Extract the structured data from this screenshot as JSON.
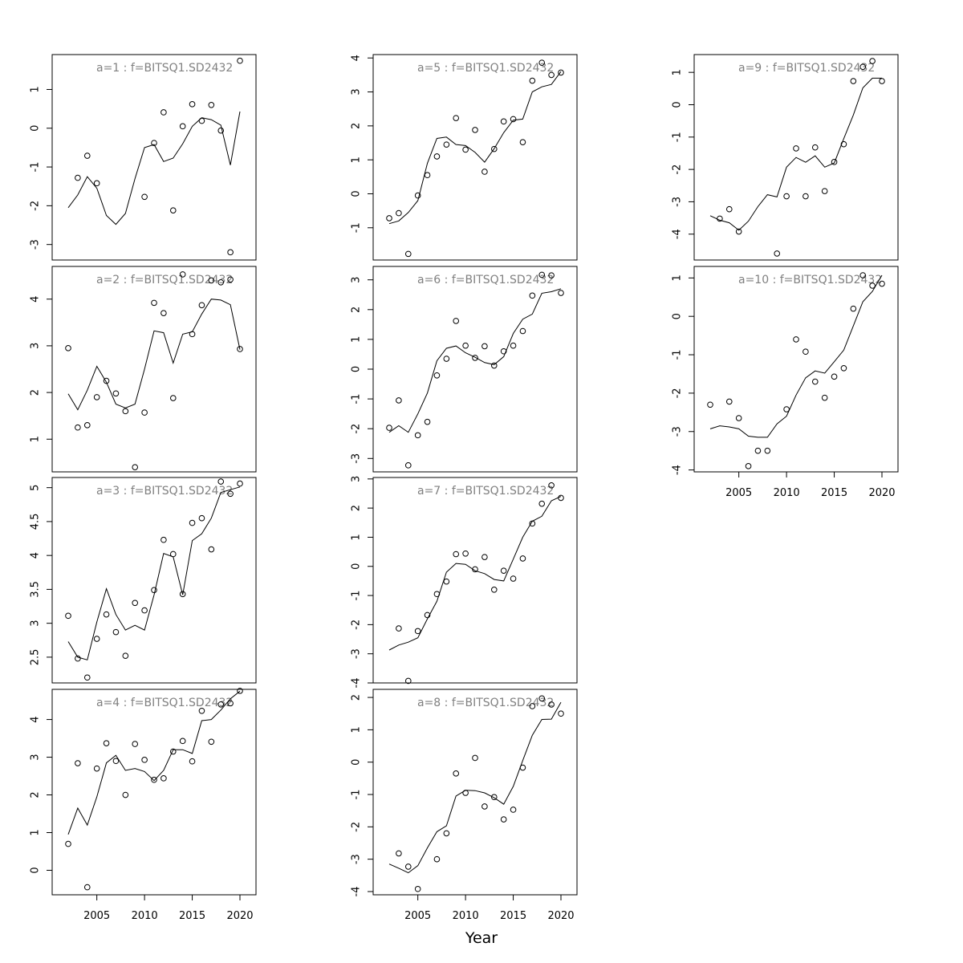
{
  "xlabel": "Year",
  "chart_data": [
    {
      "type": "scatter",
      "panel": "1",
      "title": "a=1 : f=BITSQ1.SD2432",
      "xlim": [
        2002,
        2020
      ],
      "ylim": [
        -3.4,
        1.9
      ],
      "yticks": [
        1,
        0,
        -1,
        -2,
        -3
      ],
      "xticks": [
        2005,
        2010,
        2015,
        2020
      ],
      "show_xticks": false,
      "observed": {
        "x": [
          2003,
          2004,
          2005,
          2010,
          2011,
          2012,
          2013,
          2014,
          2015,
          2016,
          2017,
          2018,
          2019,
          2020
        ],
        "y": [
          -1.28,
          -0.71,
          -1.42,
          -1.77,
          -0.38,
          0.41,
          -2.12,
          0.05,
          0.62,
          0.19,
          0.6,
          -0.06,
          -3.2,
          1.74
        ]
      },
      "fitted": {
        "x": [
          2002,
          2003,
          2004,
          2005,
          2006,
          2007,
          2008,
          2009,
          2010,
          2011,
          2012,
          2013,
          2014,
          2015,
          2016,
          2017,
          2018,
          2019,
          2020
        ],
        "y": [
          -2.05,
          -1.72,
          -1.25,
          -1.55,
          -2.25,
          -2.48,
          -2.2,
          -1.3,
          -0.5,
          -0.42,
          -0.86,
          -0.77,
          -0.4,
          0.05,
          0.27,
          0.22,
          0.08,
          -0.95,
          0.43
        ]
      }
    },
    {
      "type": "scatter",
      "panel": "2",
      "title": "a=2 : f=BITSQ1.SD2432",
      "xlim": [
        2002,
        2020
      ],
      "ylim": [
        0.3,
        4.7
      ],
      "yticks": [
        4,
        3,
        2,
        1
      ],
      "xticks": [
        2005,
        2010,
        2015,
        2020
      ],
      "show_xticks": false,
      "observed": {
        "x": [
          2002,
          2003,
          2004,
          2005,
          2006,
          2007,
          2008,
          2009,
          2010,
          2011,
          2012,
          2013,
          2014,
          2015,
          2016,
          2017,
          2018,
          2019,
          2020
        ],
        "y": [
          2.95,
          1.25,
          1.3,
          1.9,
          2.25,
          1.98,
          1.6,
          0.4,
          1.57,
          3.92,
          3.7,
          1.88,
          4.53,
          3.25,
          3.87,
          4.4,
          4.36,
          4.42,
          2.93
        ]
      },
      "fitted": {
        "x": [
          2002,
          2003,
          2004,
          2005,
          2006,
          2007,
          2008,
          2009,
          2010,
          2011,
          2012,
          2013,
          2014,
          2015,
          2016,
          2017,
          2018,
          2019,
          2020
        ],
        "y": [
          1.97,
          1.63,
          2.05,
          2.56,
          2.22,
          1.75,
          1.67,
          1.75,
          2.5,
          3.32,
          3.28,
          2.63,
          3.25,
          3.3,
          3.68,
          4.0,
          3.98,
          3.88,
          2.92
        ]
      }
    },
    {
      "type": "scatter",
      "panel": "3",
      "title": "a=3 : f=BITSQ1.SD2432",
      "xlim": [
        2002,
        2020
      ],
      "ylim": [
        2.12,
        5.15
      ],
      "yticks": [
        5.0,
        4.5,
        4.0,
        3.5,
        3.0,
        2.5
      ],
      "xticks": [
        2005,
        2010,
        2015,
        2020
      ],
      "show_xticks": false,
      "observed": {
        "x": [
          2002,
          2003,
          2004,
          2005,
          2006,
          2007,
          2008,
          2009,
          2010,
          2011,
          2012,
          2013,
          2014,
          2015,
          2016,
          2017,
          2018,
          2019,
          2020
        ],
        "y": [
          3.11,
          2.48,
          2.2,
          2.77,
          3.13,
          2.87,
          2.52,
          3.3,
          3.19,
          3.49,
          4.23,
          4.02,
          3.43,
          4.48,
          4.55,
          4.09,
          5.09,
          4.91,
          5.06
        ]
      },
      "fitted": {
        "x": [
          2002,
          2003,
          2004,
          2005,
          2006,
          2007,
          2008,
          2009,
          2010,
          2011,
          2012,
          2013,
          2014,
          2015,
          2016,
          2017,
          2018,
          2019,
          2020
        ],
        "y": [
          2.73,
          2.5,
          2.46,
          3.02,
          3.51,
          3.13,
          2.9,
          2.97,
          2.9,
          3.42,
          4.03,
          3.98,
          3.42,
          4.22,
          4.32,
          4.55,
          4.93,
          4.97,
          5.01
        ]
      }
    },
    {
      "type": "scatter",
      "panel": "4",
      "title": "a=4 : f=BITSQ1.SD2432",
      "xlim": [
        2002,
        2020
      ],
      "ylim": [
        -0.65,
        4.8
      ],
      "yticks": [
        4,
        3,
        2,
        1,
        0
      ],
      "xticks": [
        2005,
        2010,
        2015,
        2020
      ],
      "show_xticks": true,
      "observed": {
        "x": [
          2002,
          2003,
          2004,
          2005,
          2006,
          2007,
          2008,
          2009,
          2010,
          2011,
          2012,
          2013,
          2014,
          2015,
          2016,
          2017,
          2018,
          2019,
          2020
        ],
        "y": [
          0.7,
          2.84,
          -0.45,
          2.7,
          3.37,
          2.9,
          2.0,
          3.35,
          2.93,
          2.4,
          2.44,
          3.15,
          3.43,
          2.89,
          4.23,
          3.41,
          4.4,
          4.43,
          4.76
        ]
      },
      "fitted": {
        "x": [
          2002,
          2003,
          2004,
          2005,
          2006,
          2007,
          2008,
          2009,
          2010,
          2011,
          2012,
          2013,
          2014,
          2015,
          2016,
          2017,
          2018,
          2019,
          2020
        ],
        "y": [
          0.95,
          1.65,
          1.2,
          1.95,
          2.85,
          3.05,
          2.65,
          2.7,
          2.62,
          2.38,
          2.65,
          3.2,
          3.2,
          3.1,
          3.97,
          4.0,
          4.25,
          4.55,
          4.75
        ]
      }
    },
    {
      "type": "scatter",
      "panel": "5",
      "title": "a=5 : f=BITSQ1.SD2432",
      "xlim": [
        2002,
        2020
      ],
      "ylim": [
        -1.95,
        4.1
      ],
      "yticks": [
        4,
        3,
        2,
        1,
        0,
        -1
      ],
      "xticks": [
        2005,
        2010,
        2015,
        2020
      ],
      "show_xticks": false,
      "observed": {
        "x": [
          2002,
          2003,
          2004,
          2005,
          2006,
          2007,
          2008,
          2009,
          2010,
          2011,
          2012,
          2013,
          2014,
          2015,
          2016,
          2017,
          2018,
          2019,
          2020
        ],
        "y": [
          -0.72,
          -0.57,
          -1.77,
          -0.05,
          0.55,
          1.1,
          1.45,
          2.23,
          1.3,
          1.88,
          0.65,
          1.32,
          2.13,
          2.2,
          1.52,
          3.33,
          3.86,
          3.5,
          3.57
        ]
      },
      "fitted": {
        "x": [
          2002,
          2003,
          2004,
          2005,
          2006,
          2007,
          2008,
          2009,
          2010,
          2011,
          2012,
          2013,
          2014,
          2015,
          2016,
          2017,
          2018,
          2019,
          2020
        ],
        "y": [
          -0.88,
          -0.8,
          -0.55,
          -0.2,
          0.9,
          1.63,
          1.67,
          1.45,
          1.42,
          1.22,
          0.93,
          1.33,
          1.8,
          2.17,
          2.2,
          3.0,
          3.15,
          3.22,
          3.6
        ]
      }
    },
    {
      "type": "scatter",
      "panel": "6",
      "title": "a=6 : f=BITSQ1.SD2432",
      "xlim": [
        2002,
        2020
      ],
      "ylim": [
        -3.45,
        3.45
      ],
      "yticks": [
        3,
        2,
        1,
        0,
        -1,
        -2,
        -3
      ],
      "xticks": [
        2005,
        2010,
        2015,
        2020
      ],
      "show_xticks": false,
      "observed": {
        "x": [
          2002,
          2003,
          2004,
          2005,
          2006,
          2007,
          2008,
          2009,
          2010,
          2011,
          2012,
          2013,
          2014,
          2015,
          2016,
          2017,
          2018,
          2019,
          2020
        ],
        "y": [
          -1.97,
          -1.05,
          -3.23,
          -2.22,
          -1.77,
          -0.21,
          0.35,
          1.62,
          0.79,
          0.38,
          0.77,
          0.12,
          0.6,
          0.79,
          1.28,
          2.47,
          3.17,
          3.15,
          2.56
        ]
      },
      "fitted": {
        "x": [
          2002,
          2003,
          2004,
          2005,
          2006,
          2007,
          2008,
          2009,
          2010,
          2011,
          2012,
          2013,
          2014,
          2015,
          2016,
          2017,
          2018,
          2019,
          2020
        ],
        "y": [
          -2.12,
          -1.9,
          -2.12,
          -1.5,
          -0.8,
          0.28,
          0.7,
          0.78,
          0.55,
          0.4,
          0.22,
          0.15,
          0.42,
          1.2,
          1.68,
          1.85,
          2.55,
          2.6,
          2.7
        ]
      }
    },
    {
      "type": "scatter",
      "panel": "7",
      "title": "a=7 : f=BITSQ1.SD2432",
      "xlim": [
        2002,
        2020
      ],
      "ylim": [
        -4.0,
        3.05
      ],
      "yticks": [
        3,
        2,
        1,
        0,
        -1,
        -2,
        -3,
        -4
      ],
      "xticks": [
        2005,
        2010,
        2015,
        2020
      ],
      "show_xticks": false,
      "observed": {
        "x": [
          2003,
          2004,
          2005,
          2006,
          2007,
          2008,
          2009,
          2010,
          2011,
          2012,
          2013,
          2014,
          2015,
          2016,
          2017,
          2018,
          2019,
          2020
        ],
        "y": [
          -2.13,
          -3.93,
          -2.22,
          -1.67,
          -0.95,
          -0.52,
          0.42,
          0.44,
          -0.1,
          0.32,
          -0.8,
          -0.15,
          -0.42,
          0.27,
          1.47,
          2.15,
          2.78,
          2.35
        ]
      },
      "fitted": {
        "x": [
          2002,
          2003,
          2004,
          2005,
          2006,
          2007,
          2008,
          2009,
          2010,
          2011,
          2012,
          2013,
          2014,
          2015,
          2016,
          2017,
          2018,
          2019,
          2020
        ],
        "y": [
          -2.87,
          -2.7,
          -2.6,
          -2.45,
          -1.8,
          -1.2,
          -0.2,
          0.1,
          0.07,
          -0.15,
          -0.25,
          -0.45,
          -0.5,
          0.25,
          1.0,
          1.55,
          1.72,
          2.25,
          2.4
        ]
      }
    },
    {
      "type": "scatter",
      "panel": "8",
      "title": "a=8 : f=BITSQ1.SD2432",
      "xlim": [
        2002,
        2020
      ],
      "ylim": [
        -4.1,
        2.25
      ],
      "yticks": [
        2,
        1,
        0,
        -1,
        -2,
        -3,
        -4
      ],
      "xticks": [
        2005,
        2010,
        2015,
        2020
      ],
      "show_xticks": true,
      "observed": {
        "x": [
          2003,
          2004,
          2005,
          2007,
          2008,
          2009,
          2010,
          2011,
          2012,
          2013,
          2014,
          2015,
          2016,
          2017,
          2018,
          2019,
          2020
        ],
        "y": [
          -2.82,
          -3.23,
          -3.92,
          -3.0,
          -2.2,
          -0.35,
          -0.95,
          0.13,
          -1.37,
          -1.08,
          -1.77,
          -1.47,
          -0.17,
          1.73,
          1.97,
          1.78,
          1.5
        ]
      },
      "fitted": {
        "x": [
          2002,
          2003,
          2004,
          2005,
          2006,
          2007,
          2008,
          2009,
          2010,
          2011,
          2012,
          2013,
          2014,
          2015,
          2016,
          2017,
          2018,
          2019,
          2020
        ],
        "y": [
          -3.15,
          -3.28,
          -3.42,
          -3.2,
          -2.65,
          -2.15,
          -1.97,
          -1.05,
          -0.87,
          -0.88,
          -0.95,
          -1.1,
          -1.3,
          -0.75,
          0.05,
          0.83,
          1.32,
          1.33,
          1.85
        ]
      }
    },
    {
      "type": "scatter",
      "panel": "9",
      "title": "a=9 : f=BITSQ1.SD2432",
      "xlim": [
        2002,
        2020
      ],
      "ylim": [
        -4.8,
        1.55
      ],
      "yticks": [
        1,
        0,
        -1,
        -2,
        -3,
        -4
      ],
      "xticks": [
        2005,
        2010,
        2015,
        2020
      ],
      "show_xticks": false,
      "observed": {
        "x": [
          2003,
          2004,
          2005,
          2009,
          2010,
          2011,
          2012,
          2013,
          2014,
          2015,
          2016,
          2017,
          2018,
          2019,
          2020
        ],
        "y": [
          -3.52,
          -3.23,
          -3.92,
          -4.6,
          -2.83,
          -1.35,
          -2.83,
          -1.32,
          -2.67,
          -1.77,
          -1.22,
          0.73,
          1.17,
          1.35,
          0.73
        ]
      },
      "fitted": {
        "x": [
          2002,
          2003,
          2004,
          2005,
          2006,
          2007,
          2008,
          2009,
          2010,
          2011,
          2012,
          2013,
          2014,
          2015,
          2016,
          2017,
          2018,
          2019,
          2020
        ],
        "y": [
          -3.43,
          -3.57,
          -3.65,
          -3.88,
          -3.6,
          -3.15,
          -2.78,
          -2.85,
          -1.93,
          -1.63,
          -1.78,
          -1.58,
          -1.93,
          -1.8,
          -1.05,
          -0.32,
          0.52,
          0.82,
          0.82
        ]
      }
    },
    {
      "type": "scatter",
      "panel": "10",
      "title": "a=10 : f=BITSQ1.SD2432",
      "xlim": [
        2002,
        2020
      ],
      "ylim": [
        -4.05,
        1.3
      ],
      "yticks": [
        1,
        0,
        -1,
        -2,
        -3,
        -4
      ],
      "xticks": [
        2005,
        2010,
        2015,
        2020
      ],
      "show_xticks": true,
      "observed": {
        "x": [
          2002,
          2004,
          2005,
          2006,
          2007,
          2008,
          2010,
          2011,
          2012,
          2013,
          2014,
          2015,
          2016,
          2017,
          2018,
          2019,
          2020
        ],
        "y": [
          -2.3,
          -2.22,
          -2.65,
          -3.9,
          -3.5,
          -3.5,
          -2.42,
          -0.6,
          -0.92,
          -1.7,
          -2.12,
          -1.57,
          -1.35,
          0.2,
          1.07,
          0.8,
          0.85
        ]
      },
      "fitted": {
        "x": [
          2002,
          2003,
          2004,
          2005,
          2006,
          2007,
          2008,
          2009,
          2010,
          2011,
          2012,
          2013,
          2014,
          2015,
          2016,
          2017,
          2018,
          2019,
          2020
        ],
        "y": [
          -2.93,
          -2.85,
          -2.88,
          -2.93,
          -3.12,
          -3.15,
          -3.15,
          -2.8,
          -2.6,
          -2.05,
          -1.6,
          -1.42,
          -1.48,
          -1.18,
          -0.88,
          -0.25,
          0.38,
          0.65,
          1.07
        ]
      }
    }
  ]
}
